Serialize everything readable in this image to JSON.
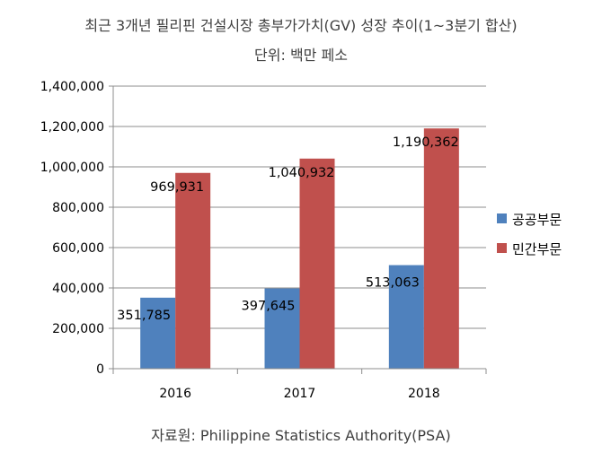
{
  "chart_data": {
    "type": "bar",
    "title": "최근 3개년 필리핀 건설시장 총부가가치(GV) 성장 추이(1~3분기 합산)",
    "subtitle": "단위: 백만 페소",
    "categories": [
      "2016",
      "2017",
      "2018"
    ],
    "series": [
      {
        "name": "공공부문",
        "values": [
          351785,
          397645,
          513063
        ],
        "labels": [
          "351,785",
          "397,645",
          "513,063"
        ],
        "color": "#4F81BD"
      },
      {
        "name": "민간부문",
        "values": [
          969931,
          1040932,
          1190362
        ],
        "labels": [
          "969,931",
          "1,040,932",
          "1,190,362"
        ],
        "color": "#C0504D"
      }
    ],
    "ylim": [
      0,
      1400000
    ],
    "yticks": [
      0,
      200000,
      400000,
      600000,
      800000,
      1000000,
      1200000,
      1400000
    ],
    "ytick_labels": [
      "0",
      "200,000",
      "400,000",
      "600,000",
      "800,000",
      "1,000,000",
      "1,200,000",
      "1,400,000"
    ],
    "grid": true,
    "legend_position": "right",
    "source": "자료원: Philippine Statistics Authority(PSA)"
  }
}
